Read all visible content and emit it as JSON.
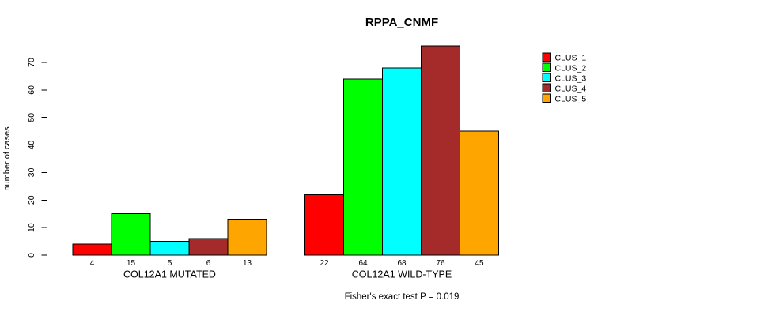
{
  "chart_data": {
    "type": "bar",
    "title": "RPPA_CNMF",
    "xlabel": "",
    "ylabel": "number of cases",
    "ylim": [
      0,
      70
    ],
    "yticks": [
      0,
      10,
      20,
      30,
      40,
      50,
      60,
      70
    ],
    "categories": [
      "COL12A1 MUTATED",
      "COL12A1 WILD-TYPE"
    ],
    "series": [
      {
        "name": "CLUS_1",
        "color": "#FF0000",
        "values": [
          4,
          22
        ]
      },
      {
        "name": "CLUS_2",
        "color": "#00FF00",
        "values": [
          15,
          64
        ]
      },
      {
        "name": "CLUS_3",
        "color": "#00FFFF",
        "values": [
          5,
          68
        ]
      },
      {
        "name": "CLUS_4",
        "color": "#A52A2A",
        "values": [
          6,
          76
        ]
      },
      {
        "name": "CLUS_5",
        "color": "#FFA500",
        "values": [
          13,
          45
        ]
      }
    ],
    "bar_value_labels_shown": true,
    "grid": false,
    "legend_position": "right",
    "legend_entries": [
      "CLUS_1",
      "CLUS_2",
      "CLUS_3",
      "CLUS_4",
      "CLUS_5"
    ],
    "annotation": "Fisher's exact test P = 0.019",
    "colors": {
      "background": "#FFFFFF",
      "axis": "#000000",
      "bar_border": "#000000",
      "text": "#000000"
    }
  }
}
